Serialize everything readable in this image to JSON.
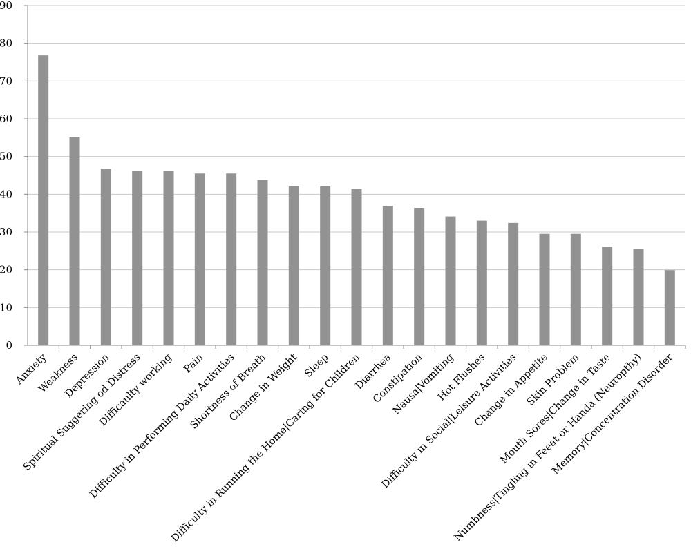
{
  "chart_data": {
    "type": "bar",
    "title": "",
    "xlabel": "",
    "ylabel": "",
    "ylim": [
      0,
      90
    ],
    "yticks": [
      0,
      10,
      20,
      30,
      40,
      50,
      60,
      70,
      80,
      90
    ],
    "grid": true,
    "legend": "none",
    "bar_color": "#929292",
    "grid_color": "#c8c8c8",
    "categories": [
      "Anxiety",
      "Weakness",
      "Depression",
      "Spiritual Suggering od Distress",
      "Difficaulty working",
      "Pain",
      "Difficulty in Performing Daily Activities",
      "Shortness of Breath",
      "Change in Weight",
      "Sleep",
      "Difficulty in Running the Home|Caring for Children",
      "Diarrhea",
      "Constipation",
      "Nausa|Vomiting",
      "Hot Flushes",
      "Difficulty in Social|Leisure Activities",
      "Change in Appetite",
      "Skin Problem",
      "Mouth Sores|Change in Taste",
      "Numbness|Tingling in Feeat or Handa (Neuropthy)",
      "Memory|Concentration Disorder"
    ],
    "values": [
      76.8,
      55.1,
      46.7,
      46.1,
      46.1,
      45.5,
      45.5,
      43.8,
      42.1,
      42.1,
      41.5,
      36.9,
      36.4,
      34.1,
      33.0,
      32.4,
      29.5,
      29.5,
      26.1,
      25.6,
      19.9
    ]
  }
}
